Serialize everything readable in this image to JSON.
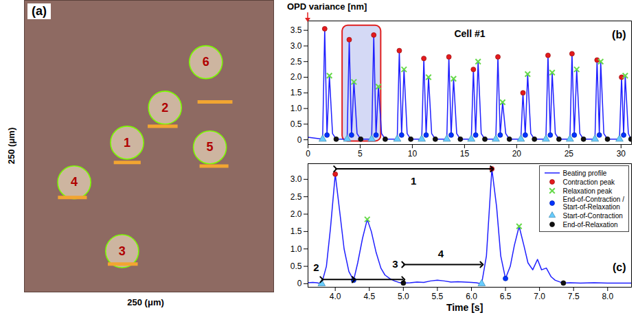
{
  "chart_data": [
    {
      "type": "image",
      "panel_label": "(a)",
      "xlabel": "250 (μm)",
      "ylabel": "250 (μm)",
      "xlim": [
        0,
        250
      ],
      "ylim": [
        0,
        250
      ],
      "tick_labels": false,
      "cells": [
        {
          "label": "1",
          "x": 103,
          "y": 128,
          "bar_x1": 90,
          "bar_x2": 117,
          "bar_y": 111
        },
        {
          "label": "2",
          "x": 141,
          "y": 158,
          "bar_x1": 124,
          "bar_x2": 154,
          "bar_y": 142
        },
        {
          "label": "3",
          "x": 98,
          "y": 35,
          "bar_x1": 84,
          "bar_x2": 114,
          "bar_y": 24
        },
        {
          "label": "4",
          "x": 50,
          "y": 94,
          "bar_x1": 34,
          "bar_x2": 63,
          "bar_y": 81
        },
        {
          "label": "5",
          "x": 186,
          "y": 124,
          "bar_x1": 176,
          "bar_x2": 205,
          "bar_y": 108
        },
        {
          "label": "6",
          "x": 182,
          "y": 197,
          "bar_x1": 174,
          "bar_x2": 209,
          "bar_y": 163
        }
      ]
    },
    {
      "type": "line",
      "panel_label": "(b)",
      "title": "Cell #1",
      "ylabel": "OPD variance [nm]",
      "xlim": [
        0,
        31
      ],
      "xticks": [
        0,
        5,
        10,
        15,
        20,
        25,
        30
      ],
      "ylim": [
        -0.15,
        3.8
      ],
      "yticks": [
        0,
        0.5,
        {
          "value": 1,
          "label": "1.0"
        },
        1.5,
        {
          "value": 2,
          "label": "2.0"
        },
        2.5,
        {
          "value": 3,
          "label": "3.0"
        },
        3.5
      ],
      "highlight": {
        "x": [
          3.3,
          7.0
        ],
        "y": [
          -0.05,
          3.65
        ]
      },
      "series": [
        {
          "name": "Beating profile",
          "type": "line",
          "color": "#1f1fff",
          "x": [
            0,
            1.4,
            1.6,
            1.82,
            2.05,
            2.35,
            2.7,
            3.75,
            3.95,
            4.17,
            4.4,
            4.7,
            5.05,
            6.1,
            6.3,
            6.52,
            6.75,
            7.05,
            7.4,
            8.55,
            8.75,
            8.97,
            9.2,
            9.5,
            9.85,
            10.9,
            11.1,
            11.32,
            11.55,
            11.85,
            12.2,
            13.3,
            13.5,
            13.72,
            13.95,
            14.25,
            14.6,
            15.65,
            15.85,
            16.07,
            16.3,
            16.6,
            16.95,
            18.0,
            18.2,
            18.42,
            18.65,
            18.95,
            19.3,
            20.4,
            20.6,
            20.82,
            21.05,
            21.35,
            21.7,
            22.8,
            23.0,
            23.22,
            23.4,
            23.7,
            24.05,
            25.1,
            25.3,
            25.52,
            25.75,
            26.05,
            26.4,
            27.5,
            27.7,
            27.92,
            28.05,
            28.35,
            28.7,
            29.85,
            30.05,
            30.25,
            30.4,
            30.7,
            30.95
          ],
          "values": [
            0.08,
            0.02,
            3.55,
            0.15,
            2.05,
            0.2,
            0.02,
            0.02,
            3.2,
            0.15,
            1.85,
            0.2,
            0.02,
            0.02,
            3.35,
            0.15,
            1.7,
            0.2,
            0.02,
            0.02,
            2.85,
            0.15,
            2.25,
            0.2,
            0.02,
            0.02,
            2.6,
            0.15,
            2.0,
            0.2,
            0.02,
            0.02,
            2.65,
            0.15,
            1.95,
            0.2,
            0.02,
            0.02,
            2.25,
            0.15,
            2.5,
            0.2,
            0.02,
            0.02,
            2.65,
            0.15,
            1.2,
            0.2,
            0.02,
            0.02,
            1.5,
            0.15,
            2.1,
            0.2,
            0.02,
            0.02,
            2.7,
            0.15,
            2.15,
            0.2,
            0.02,
            0.02,
            2.75,
            0.15,
            2.25,
            0.2,
            0.02,
            0.02,
            2.55,
            0.15,
            2.5,
            0.2,
            0.02,
            0.02,
            2.0,
            0.15,
            2.05,
            0.2,
            0.02
          ]
        },
        {
          "name": "Contraction peak",
          "type": "scatter",
          "marker": "circle",
          "color": "#e31a1c",
          "x": [
            1.6,
            3.95,
            6.3,
            8.75,
            11.1,
            13.5,
            15.85,
            18.2,
            20.6,
            23.0,
            25.3,
            27.7,
            30.05
          ],
          "values": [
            3.55,
            3.2,
            3.35,
            2.85,
            2.6,
            2.65,
            2.25,
            2.65,
            1.5,
            2.7,
            2.75,
            2.55,
            2.0
          ]
        },
        {
          "name": "Relaxation peak",
          "type": "scatter",
          "marker": "x",
          "color": "#66d94a",
          "x": [
            2.05,
            4.4,
            6.75,
            9.2,
            11.55,
            13.95,
            16.3,
            18.65,
            21.05,
            23.4,
            25.75,
            28.05,
            30.4
          ],
          "values": [
            2.05,
            1.85,
            1.7,
            2.25,
            2.0,
            1.95,
            2.5,
            1.2,
            2.1,
            2.15,
            2.25,
            2.5,
            2.05
          ]
        },
        {
          "name": "End-of-Contraction / Start-of-Relaxation",
          "type": "scatter",
          "marker": "circle",
          "color": "#0033ff",
          "x": [
            1.82,
            4.17,
            6.52,
            8.97,
            11.32,
            13.72,
            16.07,
            18.42,
            20.82,
            23.22,
            25.52,
            27.92,
            30.25
          ],
          "values": [
            0.15,
            0.15,
            0.15,
            0.15,
            0.15,
            0.15,
            0.15,
            0.15,
            0.15,
            0.15,
            0.15,
            0.15,
            0.15
          ]
        },
        {
          "name": "Start-of-Contraction",
          "type": "scatter",
          "marker": "triangle",
          "color": "#66ccff",
          "x": [
            1.4,
            3.75,
            6.1,
            8.55,
            10.9,
            13.3,
            15.65,
            18.0,
            20.4,
            22.8,
            25.1,
            27.5,
            29.85
          ],
          "values": [
            0.02,
            0.02,
            0.02,
            0.02,
            0.02,
            0.02,
            0.02,
            0.02,
            0.02,
            0.02,
            0.02,
            0.02,
            0.02
          ]
        },
        {
          "name": "End-of-Relaxation",
          "type": "scatter",
          "marker": "circle",
          "color": "#111111",
          "x": [
            2.7,
            5.05,
            7.4,
            9.85,
            12.2,
            14.6,
            16.95,
            19.3,
            21.7,
            24.05,
            26.4,
            28.7,
            30.95
          ],
          "values": [
            0.02,
            0.02,
            0.02,
            0.02,
            0.02,
            0.02,
            0.02,
            0.02,
            0.02,
            0.02,
            0.02,
            0.02,
            0.02
          ]
        }
      ]
    },
    {
      "type": "line",
      "panel_label": "(c)",
      "xlabel": "Time [s]",
      "xlim": [
        3.6,
        8.35
      ],
      "xticks": [
        {
          "value": 4,
          "label": "4.0"
        },
        4.5,
        {
          "value": 5,
          "label": "5.0"
        },
        5.5,
        {
          "value": 6,
          "label": "6.0"
        },
        6.5,
        {
          "value": 7,
          "label": "7.0"
        },
        7.5,
        {
          "value": 8,
          "label": "8.0"
        }
      ],
      "ylim": [
        -0.1,
        3.45
      ],
      "yticks": [
        0,
        0.5,
        {
          "value": 1,
          "label": "1.0"
        },
        1.5,
        {
          "value": 2,
          "label": "2.0"
        },
        2.5,
        {
          "value": 3,
          "label": "3.0"
        }
      ],
      "legend": "top-right",
      "series": [
        {
          "name": "Beating profile",
          "type": "line",
          "color": "#1f1fff",
          "x": [
            3.6,
            3.67,
            3.73,
            3.8,
            3.87,
            3.93,
            4.0,
            4.07,
            4.13,
            4.2,
            4.27,
            4.33,
            4.4,
            4.47,
            4.53,
            4.6,
            4.67,
            4.73,
            4.8,
            4.87,
            4.93,
            5.0,
            5.1,
            5.2,
            5.3,
            5.4,
            5.5,
            5.6,
            5.7,
            5.8,
            5.9,
            6.0,
            6.07,
            6.15,
            6.22,
            6.3,
            6.37,
            6.43,
            6.5,
            6.57,
            6.63,
            6.7,
            6.77,
            6.83,
            6.9,
            6.97,
            7.03,
            7.1,
            7.17,
            7.23,
            7.3,
            7.35,
            7.45,
            7.6,
            7.8,
            8.0,
            8.2,
            8.35
          ],
          "values": [
            0.03,
            0.04,
            0.03,
            0.0,
            0.5,
            1.6,
            3.15,
            2.0,
            1.0,
            0.35,
            0.1,
            0.6,
            1.3,
            1.85,
            1.5,
            0.9,
            0.45,
            0.25,
            0.15,
            0.08,
            0.04,
            0.02,
            0.03,
            0.05,
            0.04,
            0.08,
            0.1,
            0.08,
            0.05,
            0.06,
            0.05,
            0.04,
            0.03,
            0.0,
            0.8,
            3.3,
            2.2,
            0.8,
            0.15,
            0.5,
            1.1,
            1.65,
            1.1,
            0.6,
            0.4,
            0.7,
            0.4,
            0.45,
            0.2,
            0.1,
            0.05,
            0.02,
            0.03,
            0.02,
            0.03,
            0.02,
            0.02,
            0.02
          ]
        },
        {
          "name": "Contraction peak",
          "type": "scatter",
          "marker": "circle",
          "color": "#e31a1c",
          "x": [
            4.0,
            6.3
          ],
          "values": [
            3.15,
            3.3
          ]
        },
        {
          "name": "Relaxation peak",
          "type": "scatter",
          "marker": "x",
          "color": "#66d94a",
          "x": [
            4.47,
            6.7
          ],
          "values": [
            1.85,
            1.65
          ]
        },
        {
          "name": "End-of-Contraction / Start-of-Relaxation",
          "type": "scatter",
          "marker": "circle",
          "color": "#0033ff",
          "x": [
            4.27,
            6.5
          ],
          "values": [
            0.1,
            0.15
          ]
        },
        {
          "name": "Start-of-Contraction",
          "type": "scatter",
          "marker": "triangle",
          "color": "#66ccff",
          "x": [
            3.8,
            6.15
          ],
          "values": [
            0.0,
            0.0
          ]
        },
        {
          "name": "End-of-Relaxation",
          "type": "scatter",
          "marker": "circle",
          "color": "#111111",
          "x": [
            5.0,
            7.35
          ],
          "values": [
            0.02,
            0.02
          ]
        }
      ],
      "annotations": [
        {
          "label": "1",
          "x1": 4.0,
          "x2": 6.3,
          "y": 3.3,
          "label_x": 5.15,
          "label_y": 2.95
        },
        {
          "label": "2",
          "x1": 3.8,
          "x2": 4.27,
          "y": 0.12,
          "label_x": 3.72,
          "label_y": 0.45
        },
        {
          "label": "3",
          "x1": 4.27,
          "x2": 5.0,
          "y": 0.12,
          "label_x": 4.88,
          "label_y": 0.55
        },
        {
          "label": "4",
          "x1": 5.0,
          "x2": 6.15,
          "y": 0.55,
          "label_x": 5.55,
          "label_y": 0.85
        }
      ]
    }
  ]
}
